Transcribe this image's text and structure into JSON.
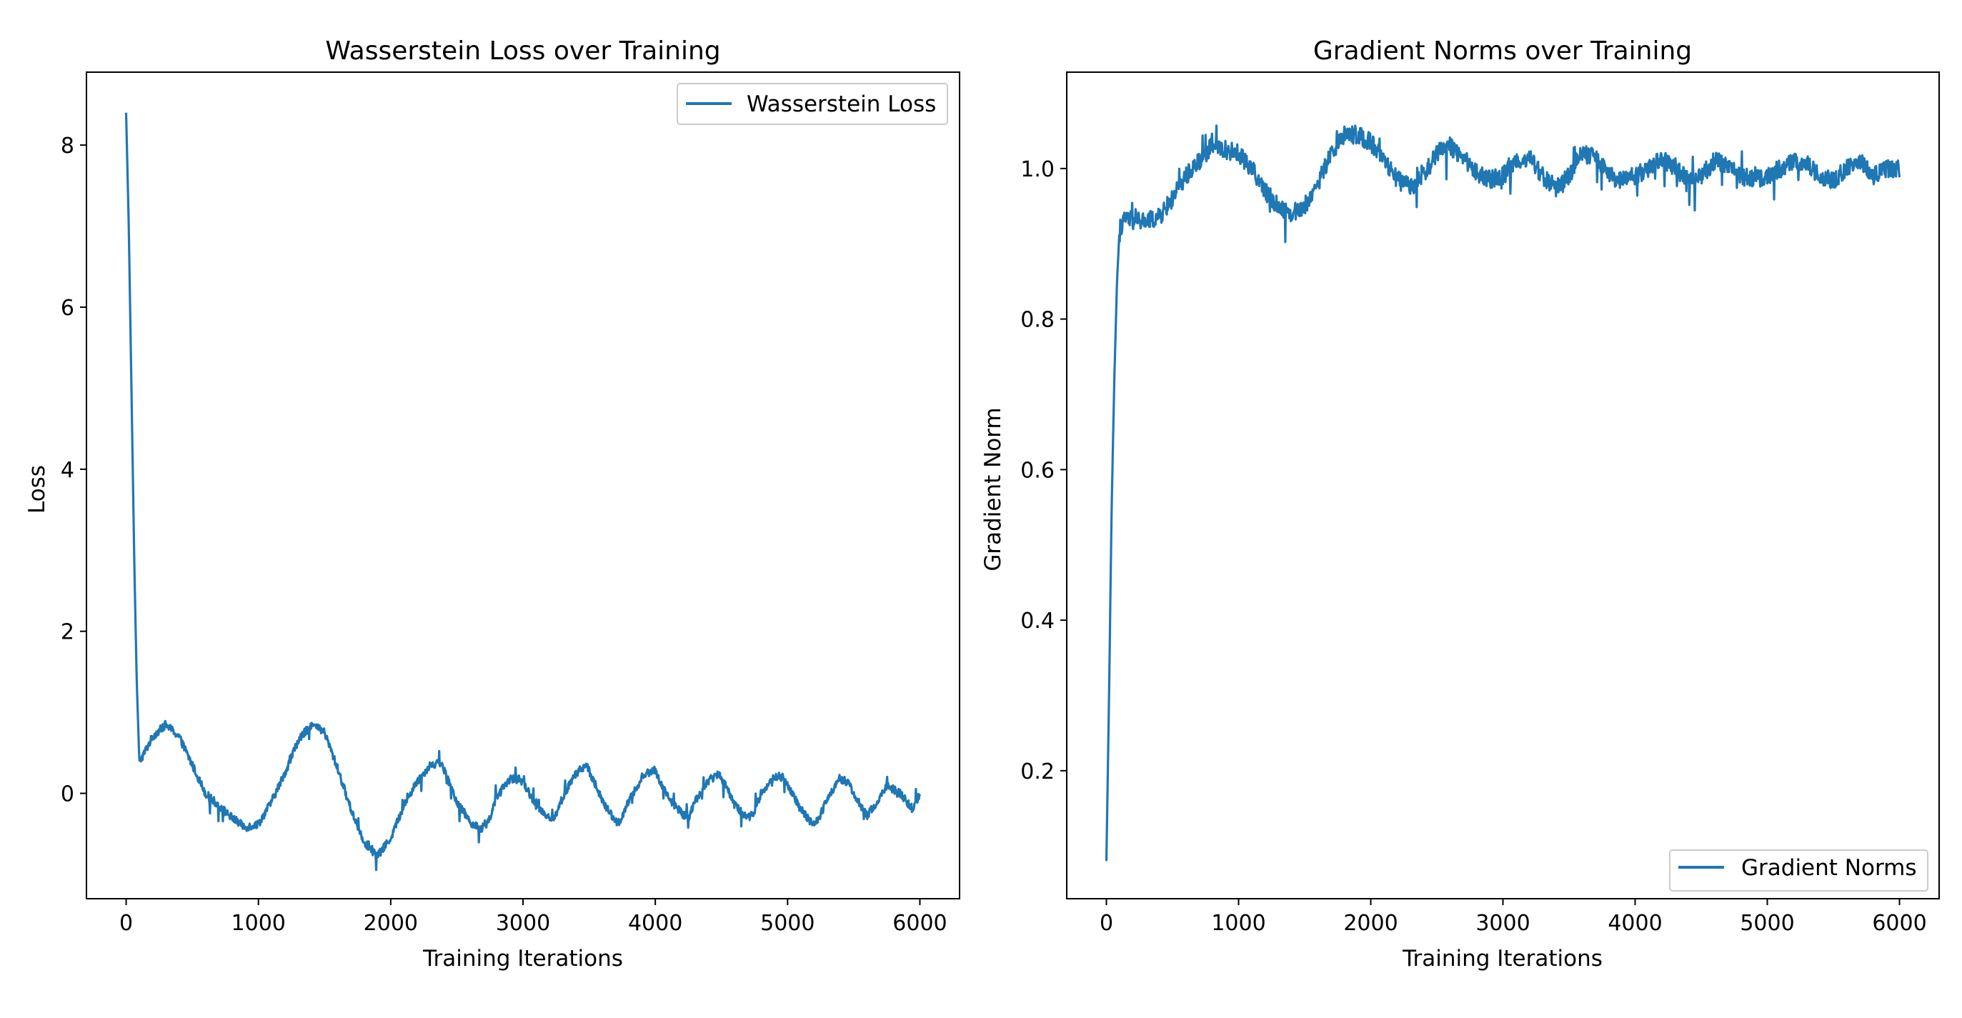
{
  "colors": {
    "series": "#1f77b4",
    "axes": "#000000",
    "legend_border": "#cccccc"
  },
  "chart_data": [
    {
      "type": "line",
      "title": "Wasserstein Loss over Training",
      "xlabel": "Training Iterations",
      "ylabel": "Loss",
      "xlim": [
        -300,
        6300
      ],
      "ylim": [
        -1.3,
        8.9
      ],
      "xticks": [
        0,
        1000,
        2000,
        3000,
        4000,
        5000,
        6000
      ],
      "xtick_labels": [
        "0",
        "1000",
        "2000",
        "3000",
        "4000",
        "5000",
        "6000"
      ],
      "yticks": [
        0,
        2,
        4,
        6,
        8
      ],
      "ytick_labels": [
        "0",
        "2",
        "4",
        "6",
        "8"
      ],
      "grid": false,
      "legend_position": "top-right",
      "series": [
        {
          "name": "Wasserstein Loss",
          "color": "#1f77b4",
          "noise": [
            0.05,
            0.18
          ],
          "x": [
            0,
            20,
            40,
            60,
            80,
            100,
            200,
            300,
            400,
            500,
            600,
            700,
            800,
            900,
            1000,
            1100,
            1200,
            1300,
            1400,
            1500,
            1600,
            1700,
            1800,
            1900,
            2000,
            2100,
            2200,
            2300,
            2380,
            2450,
            2500,
            2600,
            2680,
            2750,
            2800,
            2900,
            2980,
            3050,
            3100,
            3200,
            3230,
            3300,
            3400,
            3480,
            3550,
            3600,
            3700,
            3730,
            3800,
            3900,
            3990,
            4050,
            4100,
            4200,
            4250,
            4300,
            4400,
            4480,
            4550,
            4600,
            4700,
            4740,
            4800,
            4900,
            4960,
            5050,
            5100,
            5200,
            5240,
            5300,
            5400,
            5450,
            5550,
            5600,
            5700,
            5750,
            5850,
            5950,
            6000
          ],
          "y": [
            8.4,
            7.0,
            5.0,
            3.0,
            1.4,
            0.38,
            0.7,
            0.85,
            0.7,
            0.35,
            0.0,
            -0.15,
            -0.3,
            -0.42,
            -0.38,
            -0.1,
            0.25,
            0.65,
            0.85,
            0.75,
            0.3,
            -0.2,
            -0.6,
            -0.78,
            -0.55,
            -0.15,
            0.15,
            0.35,
            0.38,
            0.1,
            -0.1,
            -0.35,
            -0.45,
            -0.3,
            -0.05,
            0.18,
            0.18,
            0.0,
            -0.15,
            -0.3,
            -0.33,
            -0.05,
            0.25,
            0.35,
            0.1,
            -0.1,
            -0.35,
            -0.35,
            -0.1,
            0.2,
            0.3,
            0.1,
            -0.05,
            -0.25,
            -0.3,
            -0.1,
            0.15,
            0.25,
            0.05,
            -0.15,
            -0.3,
            -0.25,
            0.0,
            0.2,
            0.2,
            -0.05,
            -0.2,
            -0.4,
            -0.3,
            -0.05,
            0.18,
            0.15,
            -0.15,
            -0.28,
            -0.05,
            0.1,
            0.0,
            -0.2,
            0.0
          ]
        }
      ]
    },
    {
      "type": "line",
      "title": "Gradient Norms over Training",
      "xlabel": "Training Iterations",
      "ylabel": "Gradient Norm",
      "xlim": [
        -300,
        6300
      ],
      "ylim": [
        0.03,
        1.128
      ],
      "xticks": [
        0,
        1000,
        2000,
        3000,
        4000,
        5000,
        6000
      ],
      "xtick_labels": [
        "0",
        "1000",
        "2000",
        "3000",
        "4000",
        "5000",
        "6000"
      ],
      "yticks": [
        0.2,
        0.4,
        0.6,
        0.8,
        1.0
      ],
      "ytick_labels": [
        "0.2",
        "0.4",
        "0.6",
        "0.8",
        "1.0"
      ],
      "grid": false,
      "legend_position": "bottom-right",
      "series": [
        {
          "name": "Gradient Norms",
          "color": "#1f77b4",
          "noise": [
            0.012,
            0.035
          ],
          "x": [
            0,
            20,
            40,
            60,
            80,
            100,
            150,
            200,
            300,
            400,
            500,
            600,
            700,
            800,
            900,
            1000,
            1100,
            1200,
            1300,
            1400,
            1500,
            1600,
            1700,
            1800,
            1900,
            2000,
            2100,
            2200,
            2300,
            2400,
            2500,
            2600,
            2700,
            2800,
            2900,
            3000,
            3100,
            3200,
            3300,
            3400,
            3500,
            3600,
            3700,
            3800,
            3900,
            4000,
            4100,
            4200,
            4300,
            4400,
            4500,
            4600,
            4700,
            4800,
            4900,
            5000,
            5100,
            5200,
            5300,
            5400,
            5500,
            5600,
            5700,
            5800,
            5900,
            6000
          ],
          "y": [
            0.08,
            0.3,
            0.55,
            0.72,
            0.85,
            0.92,
            0.935,
            0.93,
            0.93,
            0.935,
            0.96,
            0.99,
            1.01,
            1.03,
            1.025,
            1.02,
            1.0,
            0.97,
            0.95,
            0.94,
            0.95,
            0.98,
            1.02,
            1.045,
            1.045,
            1.035,
            1.01,
            0.985,
            0.975,
            0.99,
            1.02,
            1.03,
            1.015,
            0.995,
            0.985,
            0.99,
            1.01,
            1.015,
            0.99,
            0.975,
            0.99,
            1.02,
            1.015,
            0.99,
            0.985,
            0.99,
            1.0,
            1.015,
            1.0,
            0.985,
            0.99,
            1.01,
            1.005,
            0.99,
            0.985,
            0.99,
            1.0,
            1.01,
            1.005,
            0.99,
            0.985,
            1.0,
            1.01,
            0.99,
            1.0,
            1.0
          ]
        }
      ]
    }
  ]
}
